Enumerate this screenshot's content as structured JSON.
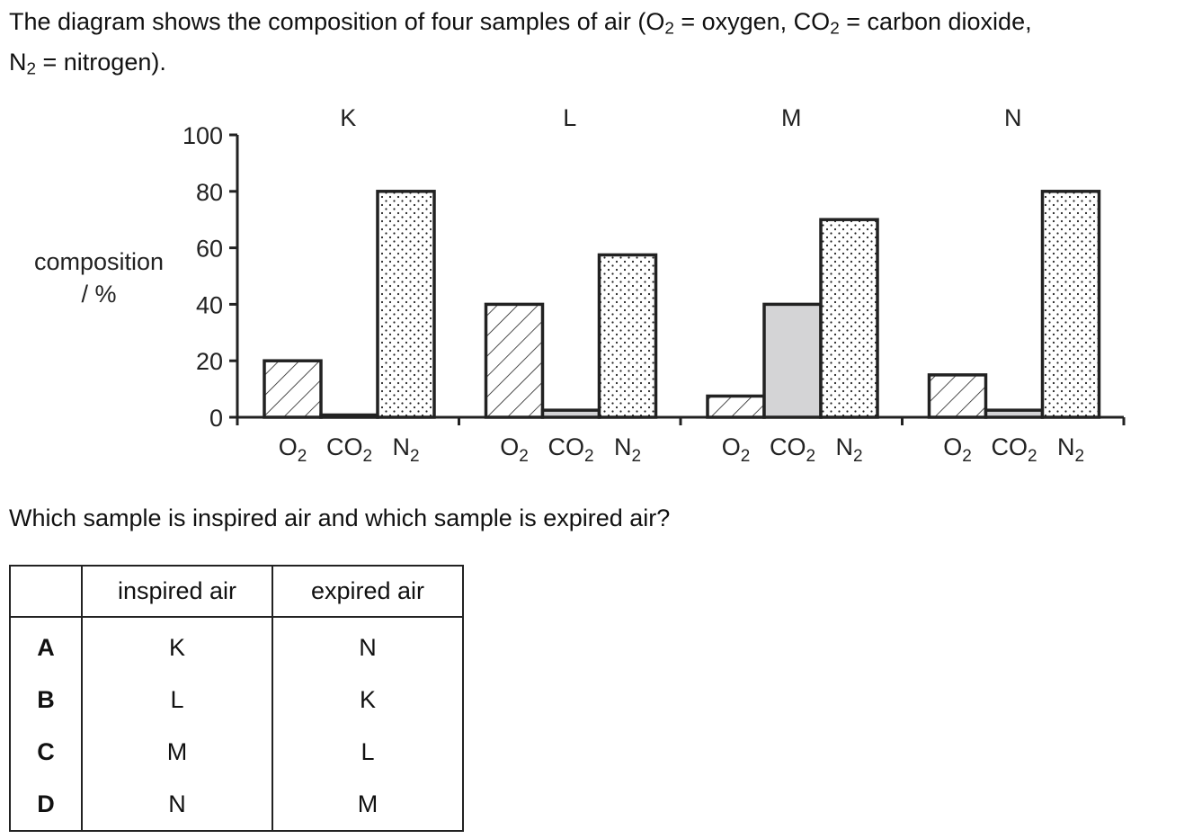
{
  "intro": {
    "line1_a": "The diagram shows the composition of four samples of air (O",
    "line1_b": "2",
    "line1_c": " = oxygen, CO",
    "line1_d": "2",
    "line1_e": " = carbon dioxide,",
    "line2_a": "N",
    "line2_b": "2",
    "line2_c": " = nitrogen)."
  },
  "chart_data": {
    "type": "bar",
    "ylabel_line1": "composition",
    "ylabel_line2": "/ %",
    "ylim": [
      0,
      100
    ],
    "yticks": [
      "0",
      "20",
      "40",
      "60",
      "80",
      "100"
    ],
    "grid": false,
    "bar_labels": [
      {
        "base": "O",
        "sub": "2"
      },
      {
        "base": "CO",
        "sub": "2"
      },
      {
        "base": "N",
        "sub": "2"
      }
    ],
    "groups": [
      {
        "name": "K",
        "values": [
          20,
          0.8,
          80
        ]
      },
      {
        "name": "L",
        "values": [
          40,
          2.5,
          57.5
        ]
      },
      {
        "name": "M",
        "values": [
          7.5,
          40,
          70
        ]
      },
      {
        "name": "N",
        "values": [
          15,
          2.5,
          80
        ]
      }
    ],
    "fills": {
      "O2": "hatched",
      "CO2": "#d4d4d6",
      "N2": "dotted"
    }
  },
  "question": "Which sample is inspired air and which sample is expired air?",
  "table": {
    "headers": [
      "",
      "inspired air",
      "expired air"
    ],
    "rows": [
      [
        "A",
        "K",
        "N"
      ],
      [
        "B",
        "L",
        "K"
      ],
      [
        "C",
        "M",
        "L"
      ],
      [
        "D",
        "N",
        "M"
      ]
    ]
  }
}
